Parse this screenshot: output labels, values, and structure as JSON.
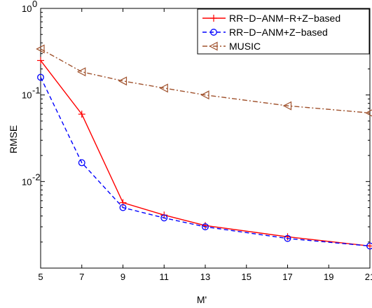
{
  "chart_data": {
    "type": "line",
    "xlabel": "M'",
    "ylabel": "RMSE",
    "x_scale": "linear",
    "y_scale": "log",
    "xlim": [
      5,
      21
    ],
    "ylim": [
      0.001,
      1
    ],
    "x_ticks": [
      5,
      7,
      9,
      11,
      13,
      15,
      17,
      19,
      21
    ],
    "x_tick_labels": [
      "5",
      "7",
      "9",
      "11",
      "13",
      "15",
      "17",
      "19",
      "21"
    ],
    "y_ticks": [
      {
        "value": 1,
        "base": "10",
        "exp": "0"
      },
      {
        "value": 0.1,
        "base": "10",
        "exp": "-1"
      },
      {
        "value": 0.01,
        "base": "10",
        "exp": "-2"
      }
    ],
    "grid": false,
    "legend_position": "top-right",
    "series": [
      {
        "name": "RR−D−ANM−R+Z−based",
        "color": "#ff0000",
        "dash": "solid",
        "marker": "plus",
        "x": [
          5,
          7,
          9,
          11,
          13,
          17,
          21
        ],
        "y": [
          0.25,
          0.06,
          0.0057,
          0.0041,
          0.0031,
          0.0023,
          0.0018
        ]
      },
      {
        "name": "RR−D−ANM+Z−based",
        "color": "#0000ff",
        "dash": "dashed",
        "marker": "circle",
        "x": [
          5,
          7,
          9,
          11,
          13,
          17,
          21
        ],
        "y": [
          0.16,
          0.0165,
          0.005,
          0.0038,
          0.003,
          0.0022,
          0.0018
        ]
      },
      {
        "name": "MUSIC",
        "color": "#a0522d",
        "dash": "dashdot",
        "marker": "triangle-left",
        "x": [
          5,
          7,
          9,
          11,
          13,
          17,
          21
        ],
        "y": [
          0.34,
          0.185,
          0.145,
          0.12,
          0.1,
          0.075,
          0.062
        ]
      }
    ]
  }
}
